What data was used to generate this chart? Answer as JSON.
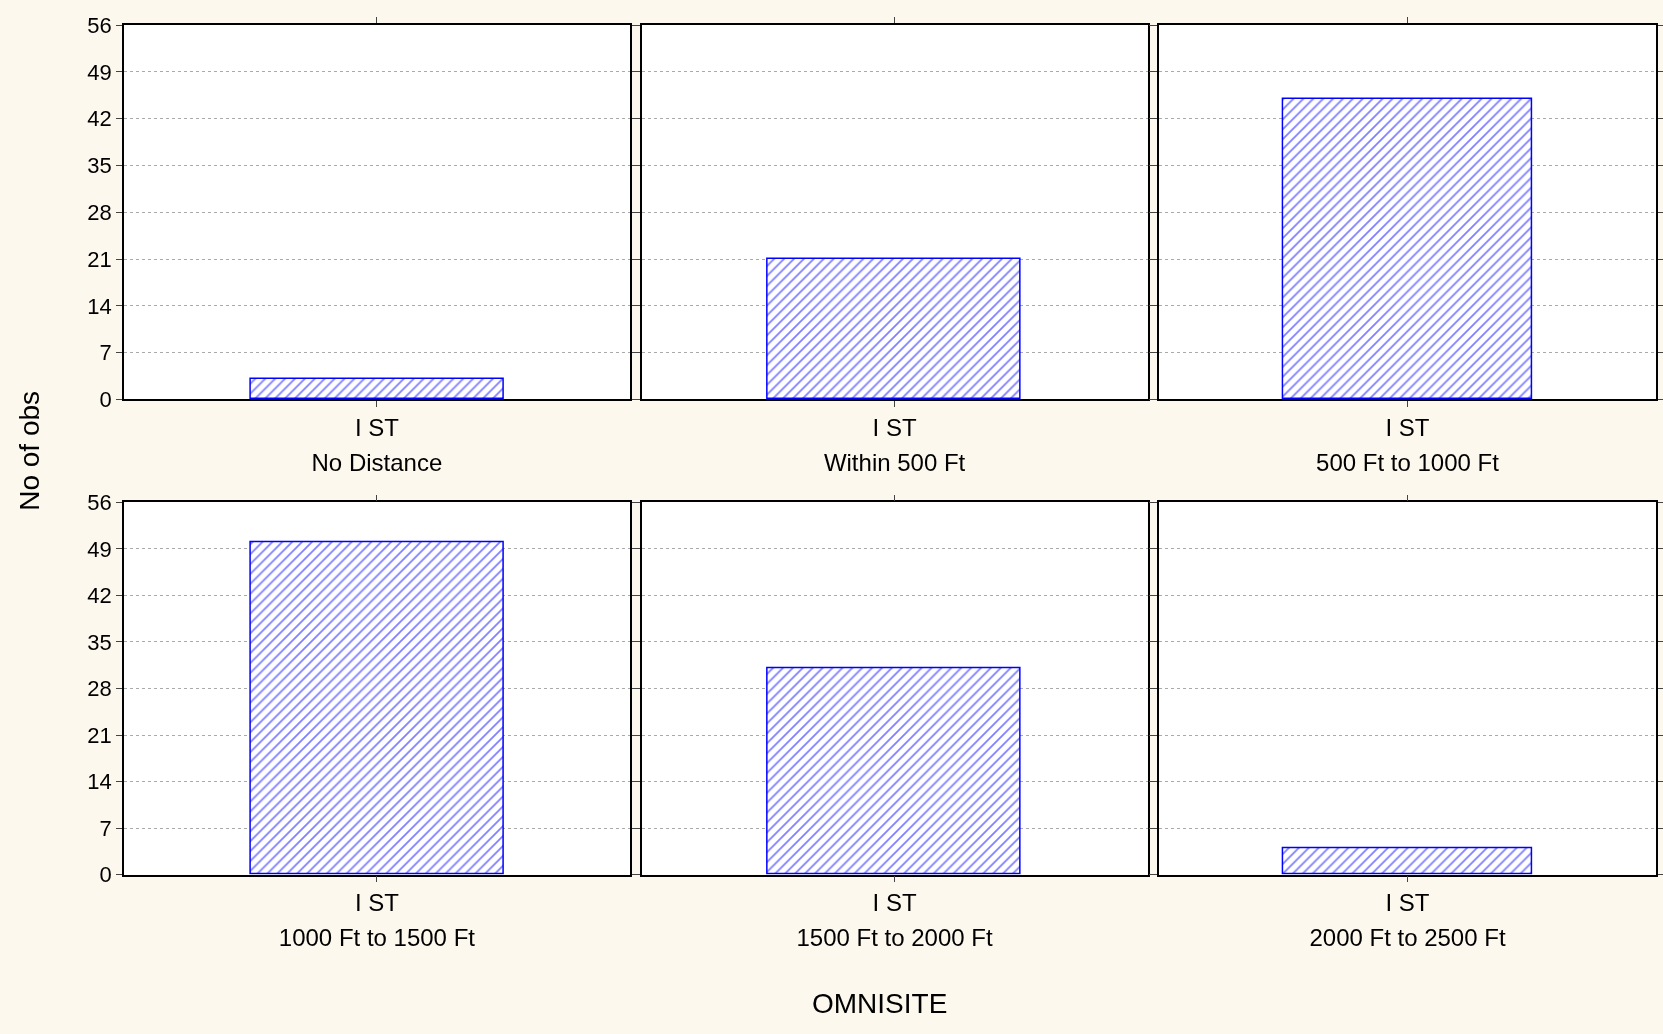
{
  "chart_data": [
    {
      "type": "bar",
      "categories": [
        "I ST"
      ],
      "values": [
        3
      ],
      "color": "#0000ff",
      "xlabel": "No Distance",
      "ylabel": "No of obs",
      "ylim": [
        0,
        56
      ],
      "yticks": [
        0,
        7,
        14,
        21,
        28,
        35,
        42,
        49,
        56
      ],
      "grid": "y"
    },
    {
      "type": "bar",
      "categories": [
        "I ST"
      ],
      "values": [
        21
      ],
      "color": "#0000ff",
      "xlabel": "Within 500 Ft",
      "ylim": [
        0,
        56
      ],
      "yticks": [
        0,
        7,
        14,
        21,
        28,
        35,
        42,
        49,
        56
      ],
      "grid": "y",
      "tick_labels": "x"
    },
    {
      "type": "bar",
      "categories": [
        "I ST"
      ],
      "values": [
        45
      ],
      "color": "#0000ff",
      "xlabel": "500 Ft to 1000 Ft",
      "ylim": [
        0,
        56
      ],
      "yticks": [
        0,
        7,
        14,
        21,
        28,
        35,
        42,
        49,
        56
      ],
      "grid": "y",
      "tick_labels": "x"
    },
    {
      "type": "bar",
      "categories": [
        "I ST"
      ],
      "values": [
        50
      ],
      "color": "#0000ff",
      "xlabel": "1000 Ft to 1500 Ft",
      "ylim": [
        0,
        56
      ],
      "yticks": [
        0,
        7,
        14,
        21,
        28,
        35,
        42,
        49,
        56
      ],
      "grid": "y"
    },
    {
      "type": "bar",
      "categories": [
        "I ST"
      ],
      "values": [
        31
      ],
      "color": "#0000ff",
      "xlabel": "1500 Ft to 2000 Ft",
      "ylim": [
        0,
        56
      ],
      "yticks": [
        0,
        7,
        14,
        21,
        28,
        35,
        42,
        49,
        56
      ],
      "grid": "y",
      "tick_labels": "x",
      "annotations": [
        "OMNISITE"
      ]
    },
    {
      "type": "bar",
      "categories": [
        "I ST"
      ],
      "values": [
        4
      ],
      "color": "#0000ff",
      "xlabel": "2000 Ft to 2500 Ft",
      "ylim": [
        0,
        56
      ],
      "yticks": [
        0,
        7,
        14,
        21,
        28,
        35,
        42,
        49,
        56
      ],
      "grid": "y",
      "tick_labels": "x"
    }
  ]
}
